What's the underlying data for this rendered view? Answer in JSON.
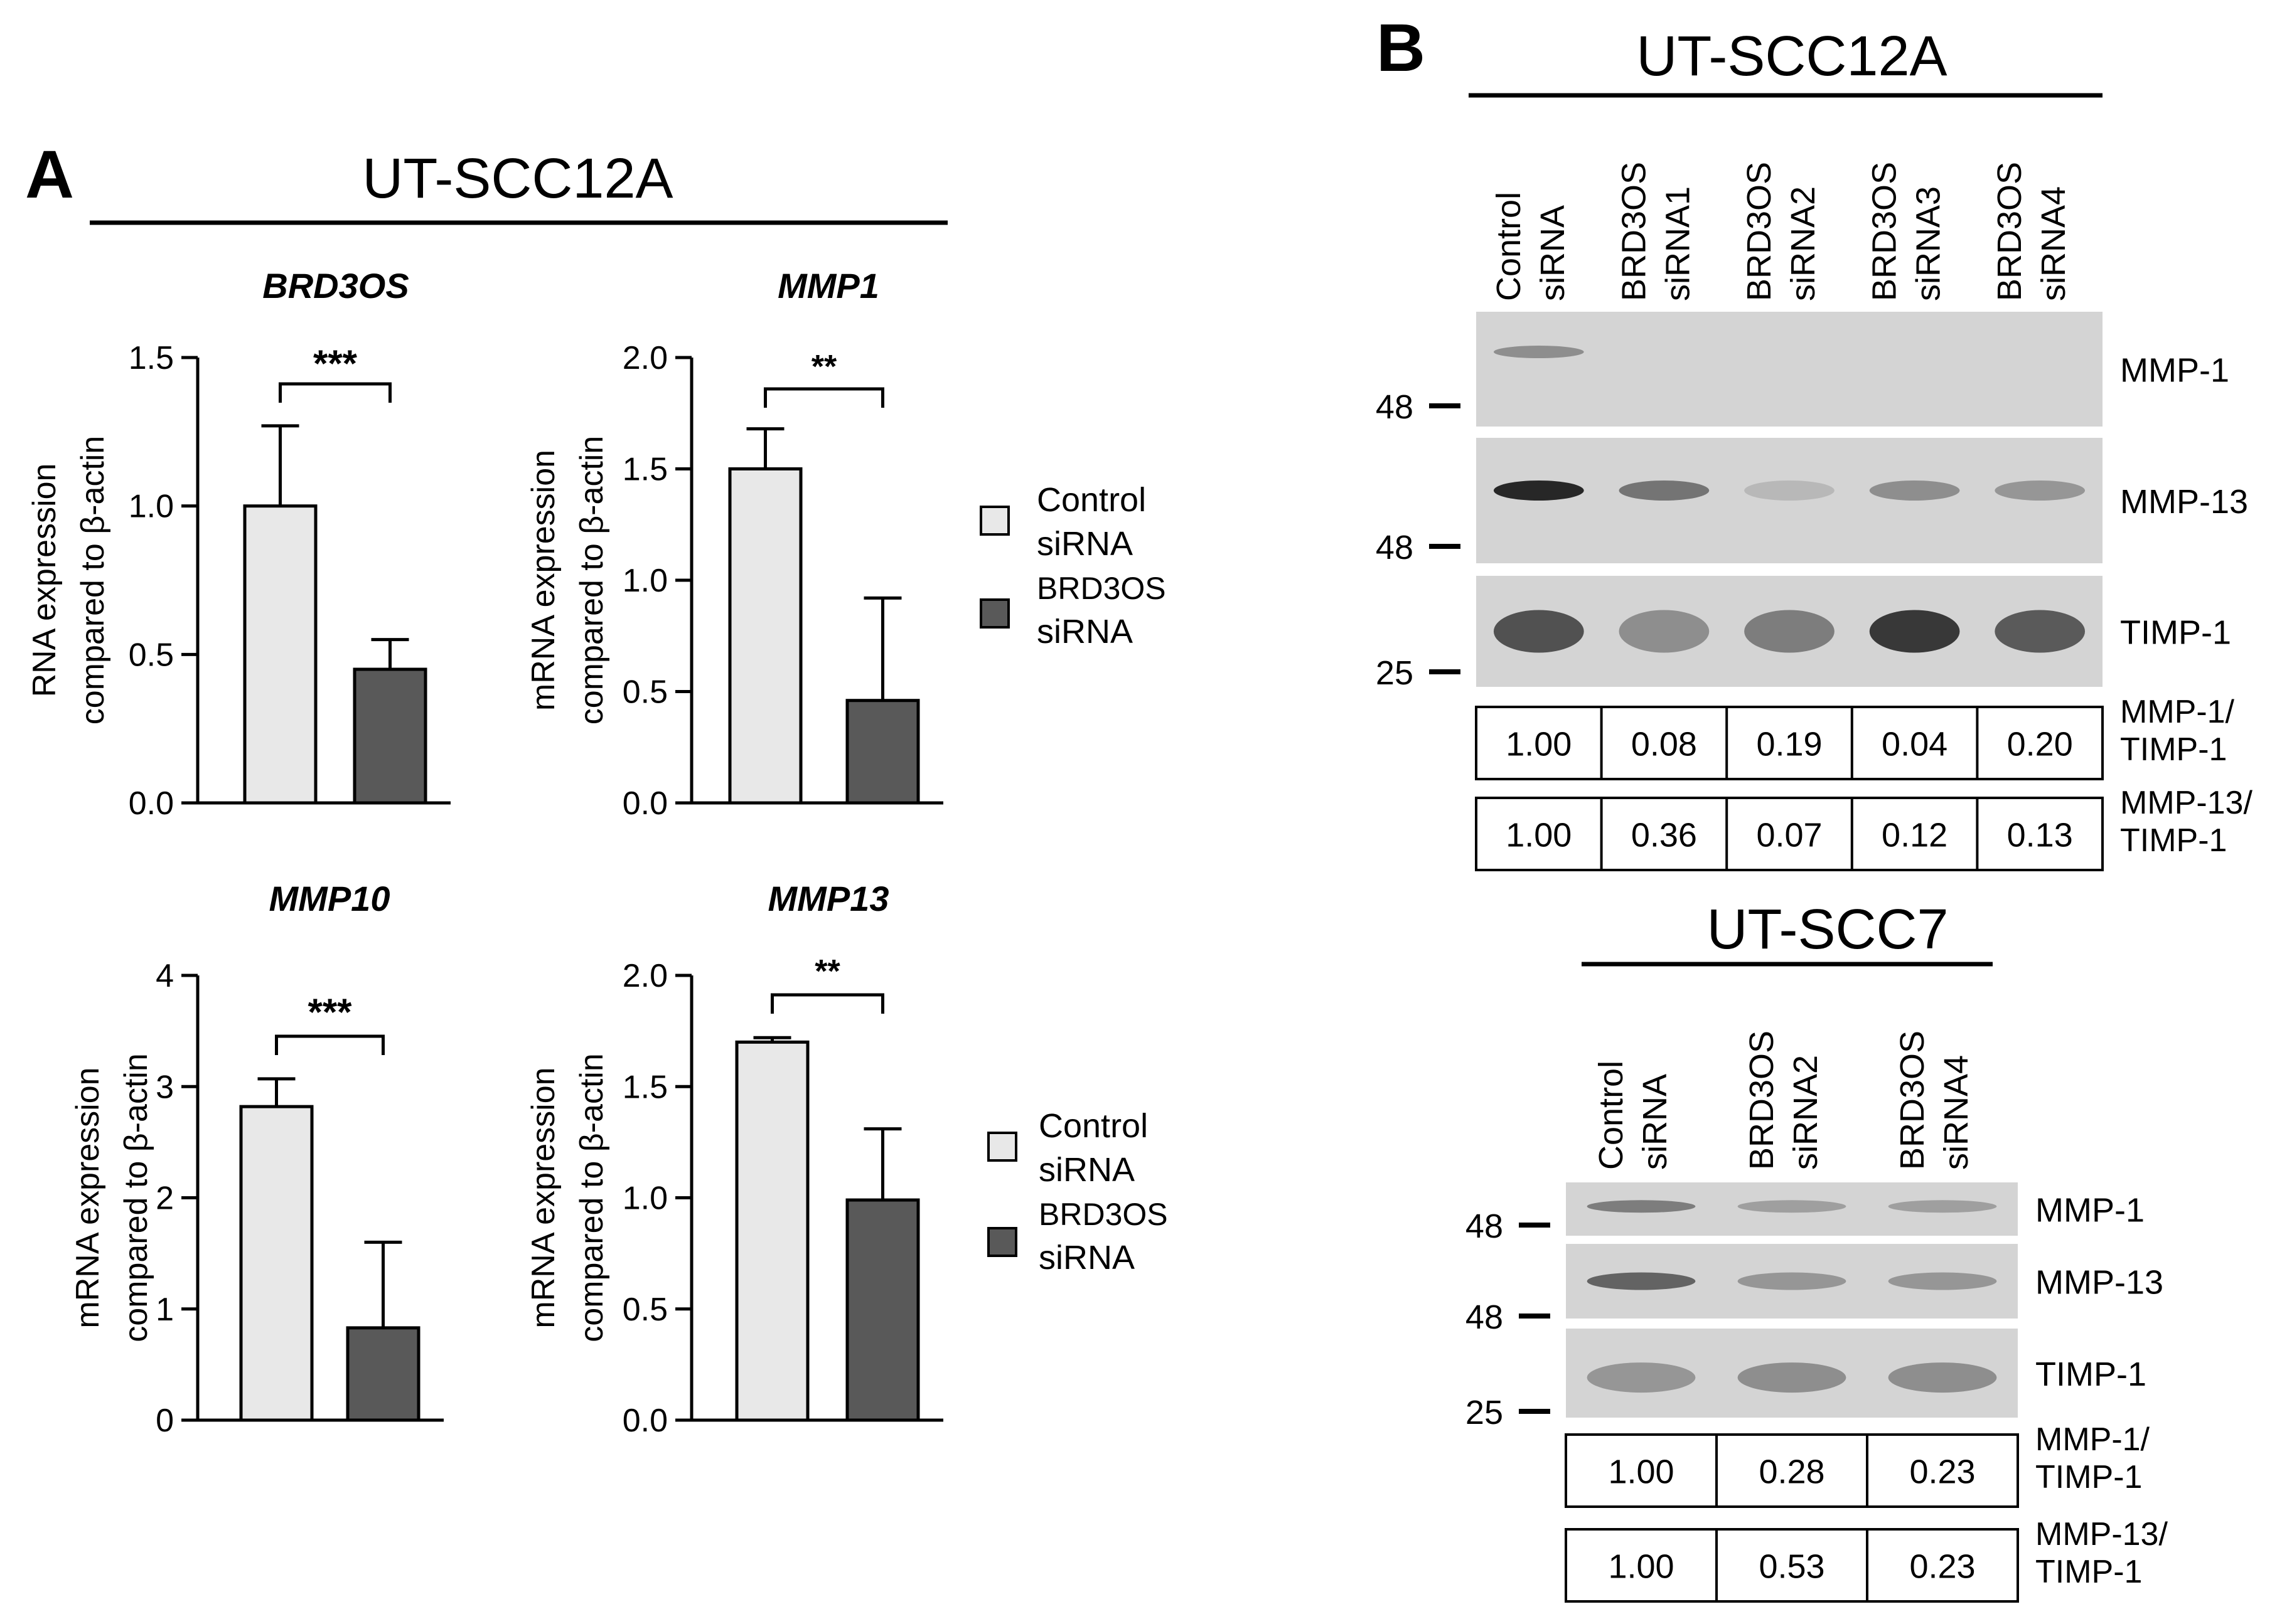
{
  "panel_a": {
    "letter": "A",
    "cell_line": "UT-SCC12A",
    "legend": {
      "control": [
        "Control",
        "siRNA"
      ],
      "knockdown": [
        "BRD3OS",
        "siRNA"
      ]
    }
  },
  "panel_b": {
    "letter": "B",
    "blot_12a": {
      "cell_line": "UT-SCC12A",
      "lanes": [
        [
          "Control",
          "siRNA"
        ],
        [
          "BRD3OS",
          "siRNA1"
        ],
        [
          "BRD3OS",
          "siRNA2"
        ],
        [
          "BRD3OS",
          "siRNA3"
        ],
        [
          "BRD3OS",
          "siRNA4"
        ]
      ],
      "proteins": [
        "MMP-1",
        "MMP-13",
        "TIMP-1"
      ],
      "markers": [
        "48",
        "48",
        "25"
      ],
      "ratio_rows": [
        {
          "label": [
            "MMP-1/",
            "TIMP-1"
          ],
          "values": [
            "1.00",
            "0.08",
            "0.19",
            "0.04",
            "0.20"
          ]
        },
        {
          "label": [
            "MMP-13/",
            "TIMP-1"
          ],
          "values": [
            "1.00",
            "0.36",
            "0.07",
            "0.12",
            "0.13"
          ]
        }
      ],
      "band_intensity": [
        [
          0.35,
          0.0,
          0.0,
          0.0,
          0.0
        ],
        [
          0.95,
          0.5,
          0.1,
          0.35,
          0.3
        ],
        [
          0.7,
          0.35,
          0.45,
          0.85,
          0.65
        ]
      ]
    },
    "blot_7": {
      "cell_line": "UT-SCC7",
      "lanes": [
        [
          "Control",
          "siRNA"
        ],
        [
          "BRD3OS",
          "siRNA2"
        ],
        [
          "BRD3OS",
          "siRNA4"
        ]
      ],
      "proteins": [
        "MMP-1",
        "MMP-13",
        "TIMP-1"
      ],
      "markers": [
        "48",
        "48",
        "25"
      ],
      "ratio_rows": [
        {
          "label": [
            "MMP-1/",
            "TIMP-1"
          ],
          "values": [
            "1.00",
            "0.28",
            "0.23"
          ]
        },
        {
          "label": [
            "MMP-13/",
            "TIMP-1"
          ],
          "values": [
            "1.00",
            "0.53",
            "0.23"
          ]
        }
      ],
      "band_intensity": [
        [
          0.45,
          0.25,
          0.25
        ],
        [
          0.6,
          0.3,
          0.3
        ],
        [
          0.3,
          0.35,
          0.35
        ]
      ]
    }
  },
  "colors": {
    "control_bar": "#e8e8e8",
    "knockdown_bar": "#595959",
    "blot_bg": "#d4d4d4"
  },
  "chart_data": [
    {
      "type": "bar",
      "title": "BRD3OS",
      "ylabel": [
        "RNA expression",
        "compared to β-actin"
      ],
      "ylim": [
        0,
        1.5
      ],
      "yticks": [
        "0.0",
        "0.5",
        "1.0",
        "1.5"
      ],
      "series": [
        {
          "name": "Control siRNA",
          "value": 1.0,
          "error": 0.27
        },
        {
          "name": "BRD3OS siRNA",
          "value": 0.45,
          "error": 0.1
        }
      ],
      "significance": "***"
    },
    {
      "type": "bar",
      "title": "MMP1",
      "ylabel": [
        "mRNA expression",
        "compared to β-actin"
      ],
      "ylim": [
        0,
        2.0
      ],
      "yticks": [
        "0.0",
        "0.5",
        "1.0",
        "1.5",
        "2.0"
      ],
      "series": [
        {
          "name": "Control siRNA",
          "value": 1.5,
          "error": 0.18
        },
        {
          "name": "BRD3OS siRNA",
          "value": 0.46,
          "error": 0.46
        }
      ],
      "significance": "**"
    },
    {
      "type": "bar",
      "title": "MMP10",
      "ylabel": [
        "mRNA expression",
        "compared to β-actin"
      ],
      "ylim": [
        0,
        4
      ],
      "yticks": [
        "0",
        "1",
        "2",
        "3",
        "4"
      ],
      "series": [
        {
          "name": "Control siRNA",
          "value": 2.82,
          "error": 0.25
        },
        {
          "name": "BRD3OS siRNA",
          "value": 0.83,
          "error": 0.77
        }
      ],
      "significance": "***"
    },
    {
      "type": "bar",
      "title": "MMP13",
      "ylabel": [
        "mRNA expression",
        "compared to β-actin"
      ],
      "ylim": [
        0,
        2.0
      ],
      "yticks": [
        "0.0",
        "0.5",
        "1.0",
        "1.5",
        "2.0"
      ],
      "series": [
        {
          "name": "Control siRNA",
          "value": 1.7,
          "error": 0.02
        },
        {
          "name": "BRD3OS siRNA",
          "value": 0.99,
          "error": 0.32
        }
      ],
      "significance": "**"
    }
  ]
}
